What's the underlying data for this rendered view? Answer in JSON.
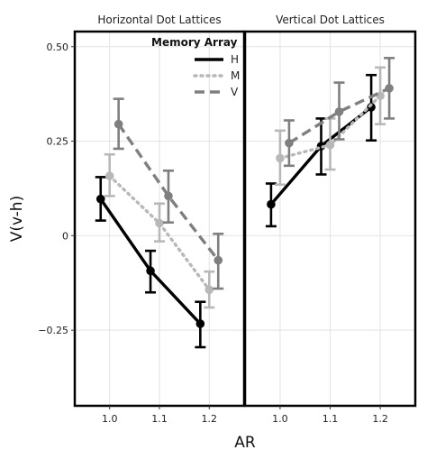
{
  "chart_data": {
    "type": "line",
    "xlabel": "AR",
    "ylabel": "V(v-h)",
    "x_ticks": [
      1.0,
      1.1,
      1.2
    ],
    "x_tick_labels": [
      "1.0",
      "1.1",
      "1.2"
    ],
    "xlim": [
      0.93,
      1.27
    ],
    "y_ticks": [
      -0.25,
      0,
      0.25,
      0.5
    ],
    "y_tick_labels": [
      "−0.25",
      "0",
      "0.25",
      "0.50"
    ],
    "ylim": [
      -0.45,
      0.54
    ],
    "grid": true,
    "legend": {
      "title": "Memory Array",
      "placement": "top-right of first panel",
      "entries": [
        "H",
        "M",
        "V"
      ]
    },
    "series_styles": {
      "H": {
        "color": "#000000",
        "dash": "solid",
        "dodge": -0.018
      },
      "M": {
        "color": "#b8b8b8",
        "dash": "dotted",
        "dodge": 0.0
      },
      "V": {
        "color": "#7f7f7f",
        "dash": "dashed",
        "dodge": 0.018
      }
    },
    "panels": [
      {
        "title": "Horizontal Dot Lattices",
        "series": [
          {
            "name": "H",
            "x": [
              1.0,
              1.1,
              1.2
            ],
            "y": [
              0.097,
              -0.093,
              -0.233
            ],
            "lower": [
              0.04,
              -0.15,
              -0.295
            ],
            "upper": [
              0.155,
              -0.04,
              -0.175
            ]
          },
          {
            "name": "M",
            "x": [
              1.0,
              1.1,
              1.2
            ],
            "y": [
              0.158,
              0.033,
              -0.143
            ],
            "lower": [
              0.105,
              -0.015,
              -0.19
            ],
            "upper": [
              0.215,
              0.085,
              -0.095
            ]
          },
          {
            "name": "V",
            "x": [
              1.0,
              1.1,
              1.2
            ],
            "y": [
              0.295,
              0.105,
              -0.065
            ],
            "lower": [
              0.23,
              0.035,
              -0.14
            ],
            "upper": [
              0.362,
              0.172,
              0.005
            ]
          }
        ]
      },
      {
        "title": "Vertical Dot Lattices",
        "series": [
          {
            "name": "H",
            "x": [
              1.0,
              1.1,
              1.2
            ],
            "y": [
              0.083,
              0.237,
              0.34
            ],
            "lower": [
              0.025,
              0.162,
              0.252
            ],
            "upper": [
              0.138,
              0.31,
              0.425
            ]
          },
          {
            "name": "M",
            "x": [
              1.0,
              1.1,
              1.2
            ],
            "y": [
              0.205,
              0.24,
              0.37
            ],
            "lower": [
              0.135,
              0.175,
              0.295
            ],
            "upper": [
              0.278,
              0.31,
              0.445
            ]
          },
          {
            "name": "V",
            "x": [
              1.0,
              1.1,
              1.2
            ],
            "y": [
              0.245,
              0.328,
              0.39
            ],
            "lower": [
              0.185,
              0.255,
              0.31
            ],
            "upper": [
              0.305,
              0.405,
              0.47
            ]
          }
        ]
      }
    ]
  }
}
